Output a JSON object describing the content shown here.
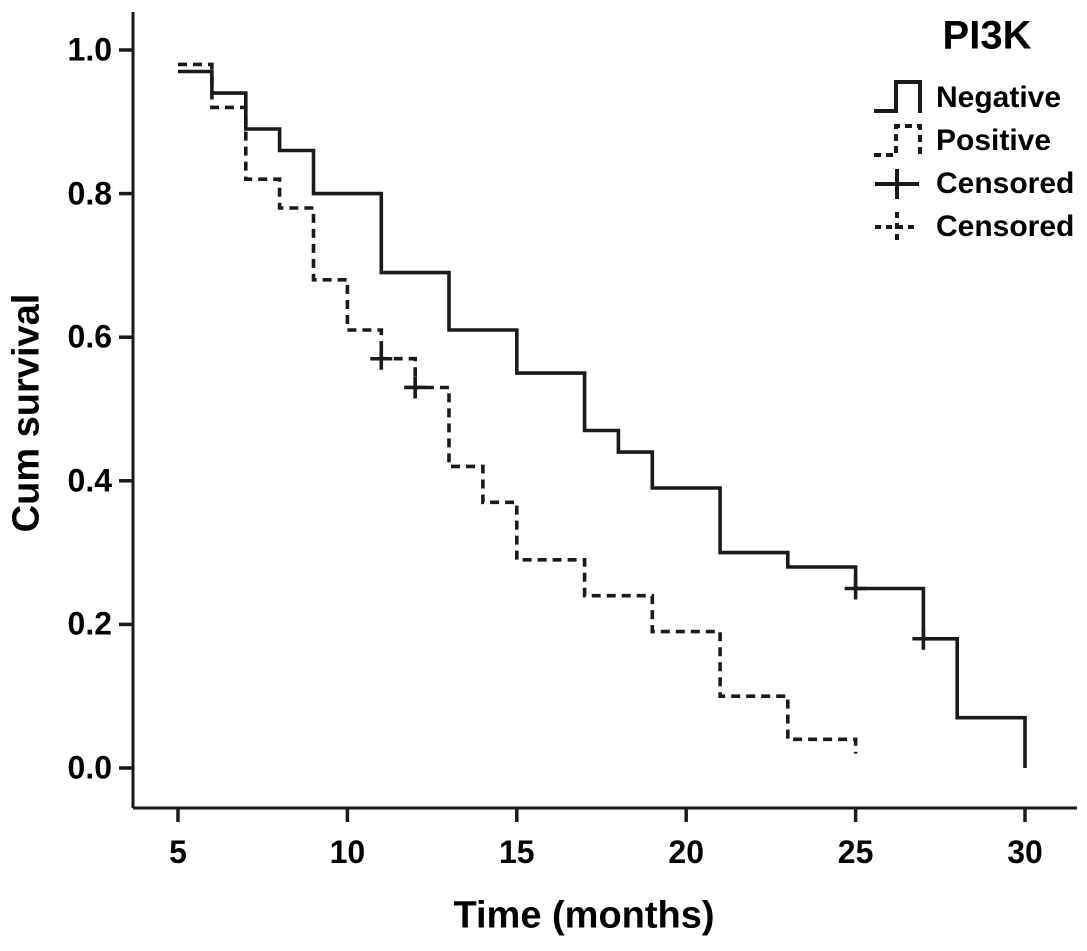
{
  "chart_data": {
    "type": "line",
    "subtype": "kaplan-meier-step-plot",
    "title": "PI3K",
    "xlabel": "Time (months)",
    "ylabel": "Cum survival",
    "x_ticks": [
      5,
      10,
      15,
      20,
      25,
      30
    ],
    "x_tick_labels": [
      "5",
      "10",
      "15",
      "20",
      "25",
      "30"
    ],
    "y_ticks": [
      1.0,
      0.8,
      0.6,
      0.4,
      0.2,
      0.0
    ],
    "y_tick_labels": [
      "1.0",
      "0.8",
      "0.6",
      "0.4",
      "0.2",
      "0.0"
    ],
    "x_range": [
      5,
      30
    ],
    "y_range": [
      0.0,
      1.0
    ],
    "grid": false,
    "line_color": "#1a1a1a",
    "background_color": "#ffffff",
    "legend_position": "top-right",
    "series": [
      {
        "name": "Negative",
        "style": "solid",
        "points": [
          [
            5,
            0.97
          ],
          [
            6,
            0.97
          ],
          [
            6,
            0.94
          ],
          [
            7,
            0.94
          ],
          [
            7,
            0.89
          ],
          [
            8,
            0.89
          ],
          [
            8,
            0.86
          ],
          [
            9,
            0.86
          ],
          [
            9,
            0.8
          ],
          [
            11,
            0.8
          ],
          [
            11,
            0.69
          ],
          [
            13,
            0.69
          ],
          [
            13,
            0.61
          ],
          [
            15,
            0.61
          ],
          [
            15,
            0.55
          ],
          [
            17,
            0.55
          ],
          [
            17,
            0.47
          ],
          [
            18,
            0.47
          ],
          [
            18,
            0.44
          ],
          [
            19,
            0.44
          ],
          [
            19,
            0.39
          ],
          [
            21,
            0.39
          ],
          [
            21,
            0.3
          ],
          [
            23,
            0.3
          ],
          [
            23,
            0.28
          ],
          [
            25,
            0.28
          ],
          [
            25,
            0.25
          ],
          [
            27,
            0.25
          ],
          [
            27,
            0.18
          ],
          [
            28,
            0.18
          ],
          [
            28,
            0.07
          ],
          [
            30,
            0.07
          ],
          [
            30,
            0.0
          ]
        ],
        "censored_points": [
          [
            25,
            0.25
          ],
          [
            27,
            0.18
          ]
        ]
      },
      {
        "name": "Positive",
        "style": "dashed",
        "points": [
          [
            5,
            0.98
          ],
          [
            6,
            0.98
          ],
          [
            6,
            0.92
          ],
          [
            7,
            0.92
          ],
          [
            7,
            0.82
          ],
          [
            8,
            0.82
          ],
          [
            8,
            0.78
          ],
          [
            9,
            0.78
          ],
          [
            9,
            0.68
          ],
          [
            10,
            0.68
          ],
          [
            10,
            0.61
          ],
          [
            11,
            0.61
          ],
          [
            11,
            0.57
          ],
          [
            12,
            0.57
          ],
          [
            12,
            0.53
          ],
          [
            13,
            0.53
          ],
          [
            13,
            0.42
          ],
          [
            14,
            0.42
          ],
          [
            14,
            0.37
          ],
          [
            15,
            0.37
          ],
          [
            15,
            0.29
          ],
          [
            17,
            0.29
          ],
          [
            17,
            0.24
          ],
          [
            19,
            0.24
          ],
          [
            19,
            0.19
          ],
          [
            21,
            0.19
          ],
          [
            21,
            0.1
          ],
          [
            23,
            0.1
          ],
          [
            23,
            0.04
          ],
          [
            25,
            0.04
          ],
          [
            25,
            0.02
          ]
        ],
        "censored_points": [
          [
            11,
            0.57
          ],
          [
            12,
            0.53
          ]
        ]
      }
    ],
    "legend": {
      "title": "PI3K",
      "entries": [
        {
          "label": "Negative",
          "symbol": "step-solid"
        },
        {
          "label": "Positive",
          "symbol": "step-dashed"
        },
        {
          "label": "Censored",
          "symbol": "plus-solid"
        },
        {
          "label": "Censored",
          "symbol": "plus-dashed"
        }
      ]
    }
  }
}
